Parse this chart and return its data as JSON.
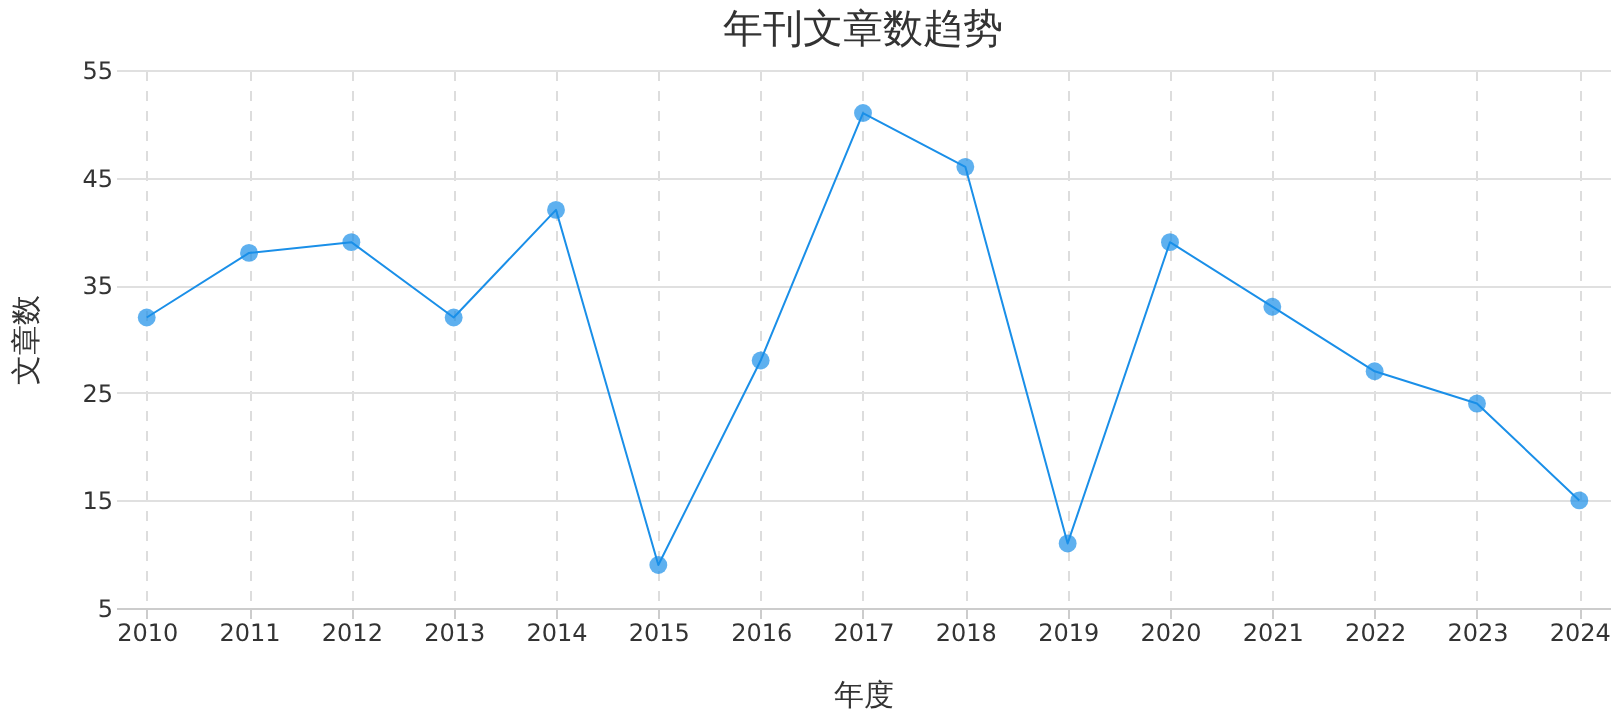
{
  "chart_data": {
    "type": "line",
    "title": "年刊文章数趋势",
    "xlabel": "年度",
    "ylabel": "文章数",
    "categories": [
      "2010",
      "2011",
      "2012",
      "2013",
      "2014",
      "2015",
      "2016",
      "2017",
      "2018",
      "2019",
      "2020",
      "2021",
      "2022",
      "2023",
      "2024"
    ],
    "series": [
      {
        "color": "#1a8fe8",
        "values": [
          32,
          38,
          39,
          32,
          42,
          9,
          28,
          51,
          46,
          11,
          39,
          33,
          27,
          24,
          15
        ]
      }
    ],
    "ylim": [
      5,
      55
    ],
    "yticks": [
      5,
      15,
      25,
      35,
      45,
      55
    ],
    "grid": true,
    "marker": "circle",
    "line_style": "solid"
  }
}
